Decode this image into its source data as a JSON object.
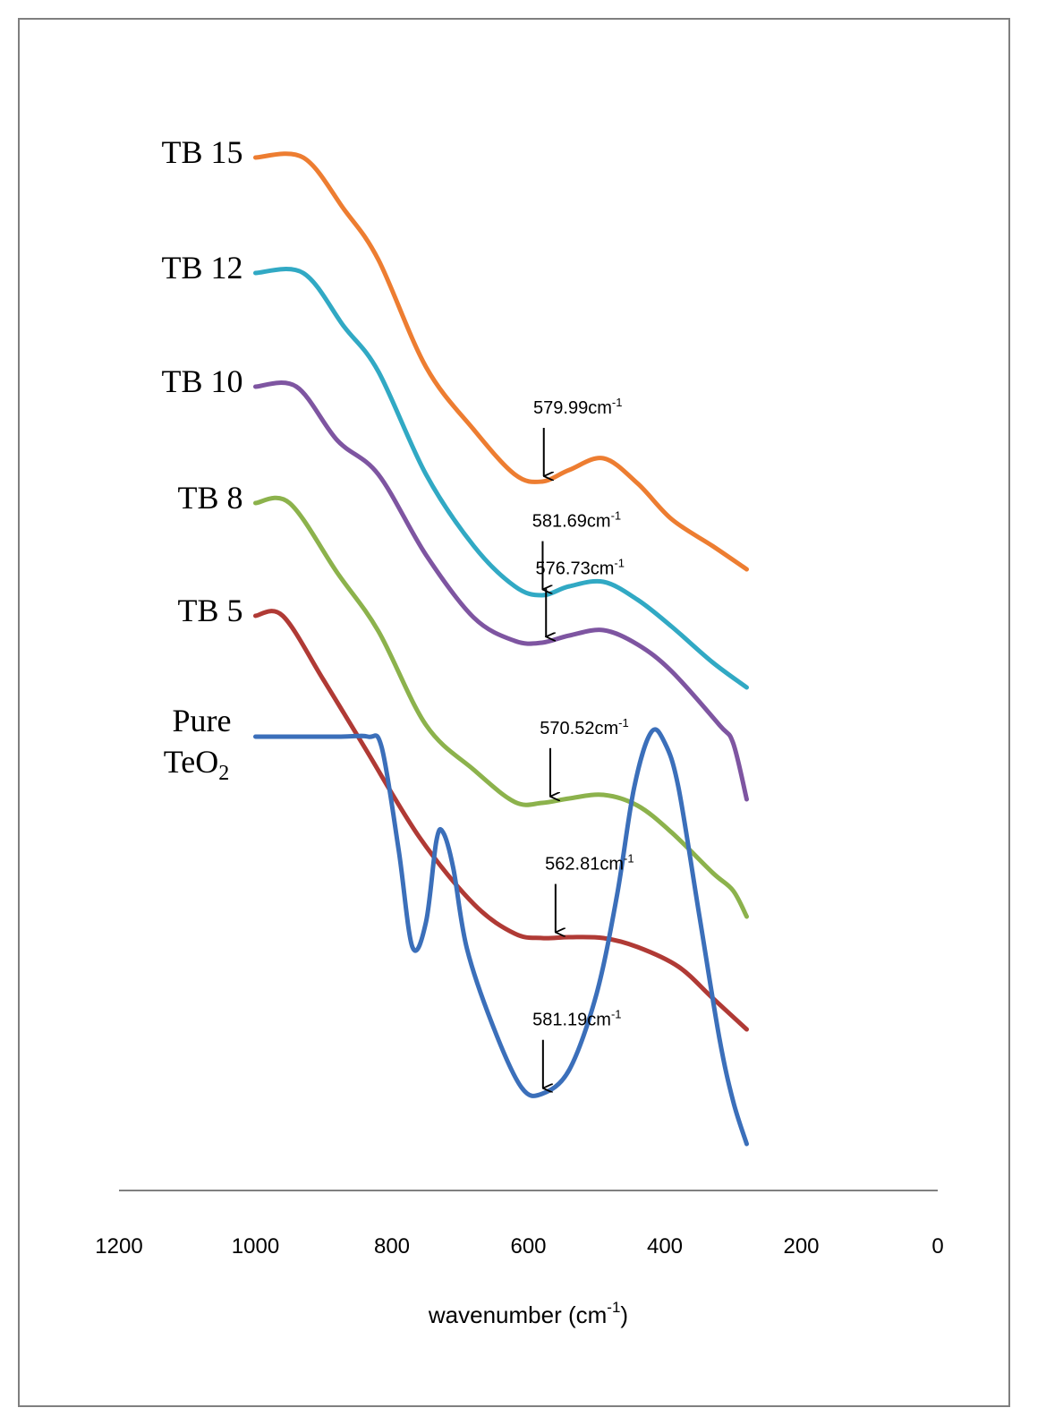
{
  "chart_data": {
    "type": "line",
    "title": "",
    "xlabel": "wavenumber (cm",
    "xlabel_sup": "-1",
    "xlabel_close": ")",
    "ylabel": "",
    "xlim": [
      1200,
      0
    ],
    "x_reversed": true,
    "x_ticks": [
      "1200",
      "1000",
      "800",
      "600",
      "400",
      "200",
      "0"
    ],
    "x_tick_values": [
      1200,
      1000,
      800,
      600,
      400,
      200,
      0
    ],
    "grid": false,
    "y_axis_shown": false,
    "legend": "labels beside curves",
    "series": [
      {
        "name": "TB 15",
        "color": "#ED7D31",
        "points": [
          [
            1000,
            176
          ],
          [
            930,
            176
          ],
          [
            870,
            234
          ],
          [
            820,
            290
          ],
          [
            750,
            410
          ],
          [
            680,
            480
          ],
          [
            620,
            530
          ],
          [
            580,
            538
          ],
          [
            540,
            525
          ],
          [
            490,
            512
          ],
          [
            440,
            540
          ],
          [
            390,
            580
          ],
          [
            330,
            610
          ],
          [
            280,
            636
          ]
        ]
      },
      {
        "name": "TB 12",
        "color": "#31A9C4",
        "points": [
          [
            1000,
            305
          ],
          [
            930,
            305
          ],
          [
            870,
            365
          ],
          [
            820,
            415
          ],
          [
            750,
            530
          ],
          [
            680,
            610
          ],
          [
            620,
            655
          ],
          [
            580,
            665
          ],
          [
            540,
            655
          ],
          [
            490,
            650
          ],
          [
            440,
            670
          ],
          [
            390,
            700
          ],
          [
            330,
            740
          ],
          [
            280,
            768
          ]
        ]
      },
      {
        "name": "TB 10",
        "color": "#7E55A1",
        "points": [
          [
            1000,
            432
          ],
          [
            940,
            432
          ],
          [
            880,
            492
          ],
          [
            820,
            530
          ],
          [
            750,
            620
          ],
          [
            680,
            690
          ],
          [
            620,
            716
          ],
          [
            580,
            718
          ],
          [
            540,
            710
          ],
          [
            490,
            704
          ],
          [
            440,
            720
          ],
          [
            390,
            750
          ],
          [
            320,
            810
          ],
          [
            300,
            830
          ],
          [
            280,
            893
          ]
        ]
      },
      {
        "name": "TB 8",
        "color": "#8CB24C",
        "points": [
          [
            1000,
            562
          ],
          [
            950,
            562
          ],
          [
            880,
            640
          ],
          [
            820,
            705
          ],
          [
            750,
            810
          ],
          [
            680,
            860
          ],
          [
            620,
            896
          ],
          [
            580,
            897
          ],
          [
            540,
            892
          ],
          [
            490,
            888
          ],
          [
            440,
            900
          ],
          [
            390,
            930
          ],
          [
            330,
            975
          ],
          [
            300,
            995
          ],
          [
            280,
            1024
          ]
        ]
      },
      {
        "name": "TB 5",
        "color": "#B03A35",
        "points": [
          [
            1000,
            688
          ],
          [
            960,
            688
          ],
          [
            900,
            760
          ],
          [
            840,
            835
          ],
          [
            760,
            935
          ],
          [
            680,
            1010
          ],
          [
            620,
            1043
          ],
          [
            580,
            1048
          ],
          [
            540,
            1047
          ],
          [
            490,
            1048
          ],
          [
            440,
            1058
          ],
          [
            380,
            1080
          ],
          [
            330,
            1115
          ],
          [
            280,
            1150
          ]
        ]
      },
      {
        "name": "Pure",
        "name_line2": "TeO",
        "name_sub": "2",
        "color": "#3B6FBA",
        "points": [
          [
            1000,
            823
          ],
          [
            880,
            823
          ],
          [
            835,
            823
          ],
          [
            815,
            835
          ],
          [
            790,
            950
          ],
          [
            770,
            1058
          ],
          [
            750,
            1030
          ],
          [
            735,
            940
          ],
          [
            725,
            930
          ],
          [
            710,
            970
          ],
          [
            690,
            1060
          ],
          [
            650,
            1150
          ],
          [
            610,
            1215
          ],
          [
            580,
            1222
          ],
          [
            540,
            1195
          ],
          [
            500,
            1110
          ],
          [
            470,
            1000
          ],
          [
            445,
            880
          ],
          [
            420,
            818
          ],
          [
            400,
            830
          ],
          [
            380,
            880
          ],
          [
            350,
            1020
          ],
          [
            320,
            1160
          ],
          [
            300,
            1230
          ],
          [
            280,
            1278
          ]
        ]
      }
    ],
    "annotations": [
      {
        "text": "579.99cm",
        "sup": "-1",
        "x": 580,
        "target_series": "TB 15"
      },
      {
        "text": "581.69cm",
        "sup": "-1",
        "x": 581.69,
        "target_series": "TB 12"
      },
      {
        "text": "576.73cm",
        "sup": "-1",
        "x": 576.73,
        "target_series": "TB 10"
      },
      {
        "text": "570.52cm",
        "sup": "-1",
        "x": 570.52,
        "target_series": "TB 8"
      },
      {
        "text": "562.81cm",
        "sup": "-1",
        "x": 562.81,
        "target_series": "TB 5"
      },
      {
        "text": "581.19cm",
        "sup": "-1",
        "x": 581.19,
        "target_series": "Pure"
      }
    ]
  }
}
